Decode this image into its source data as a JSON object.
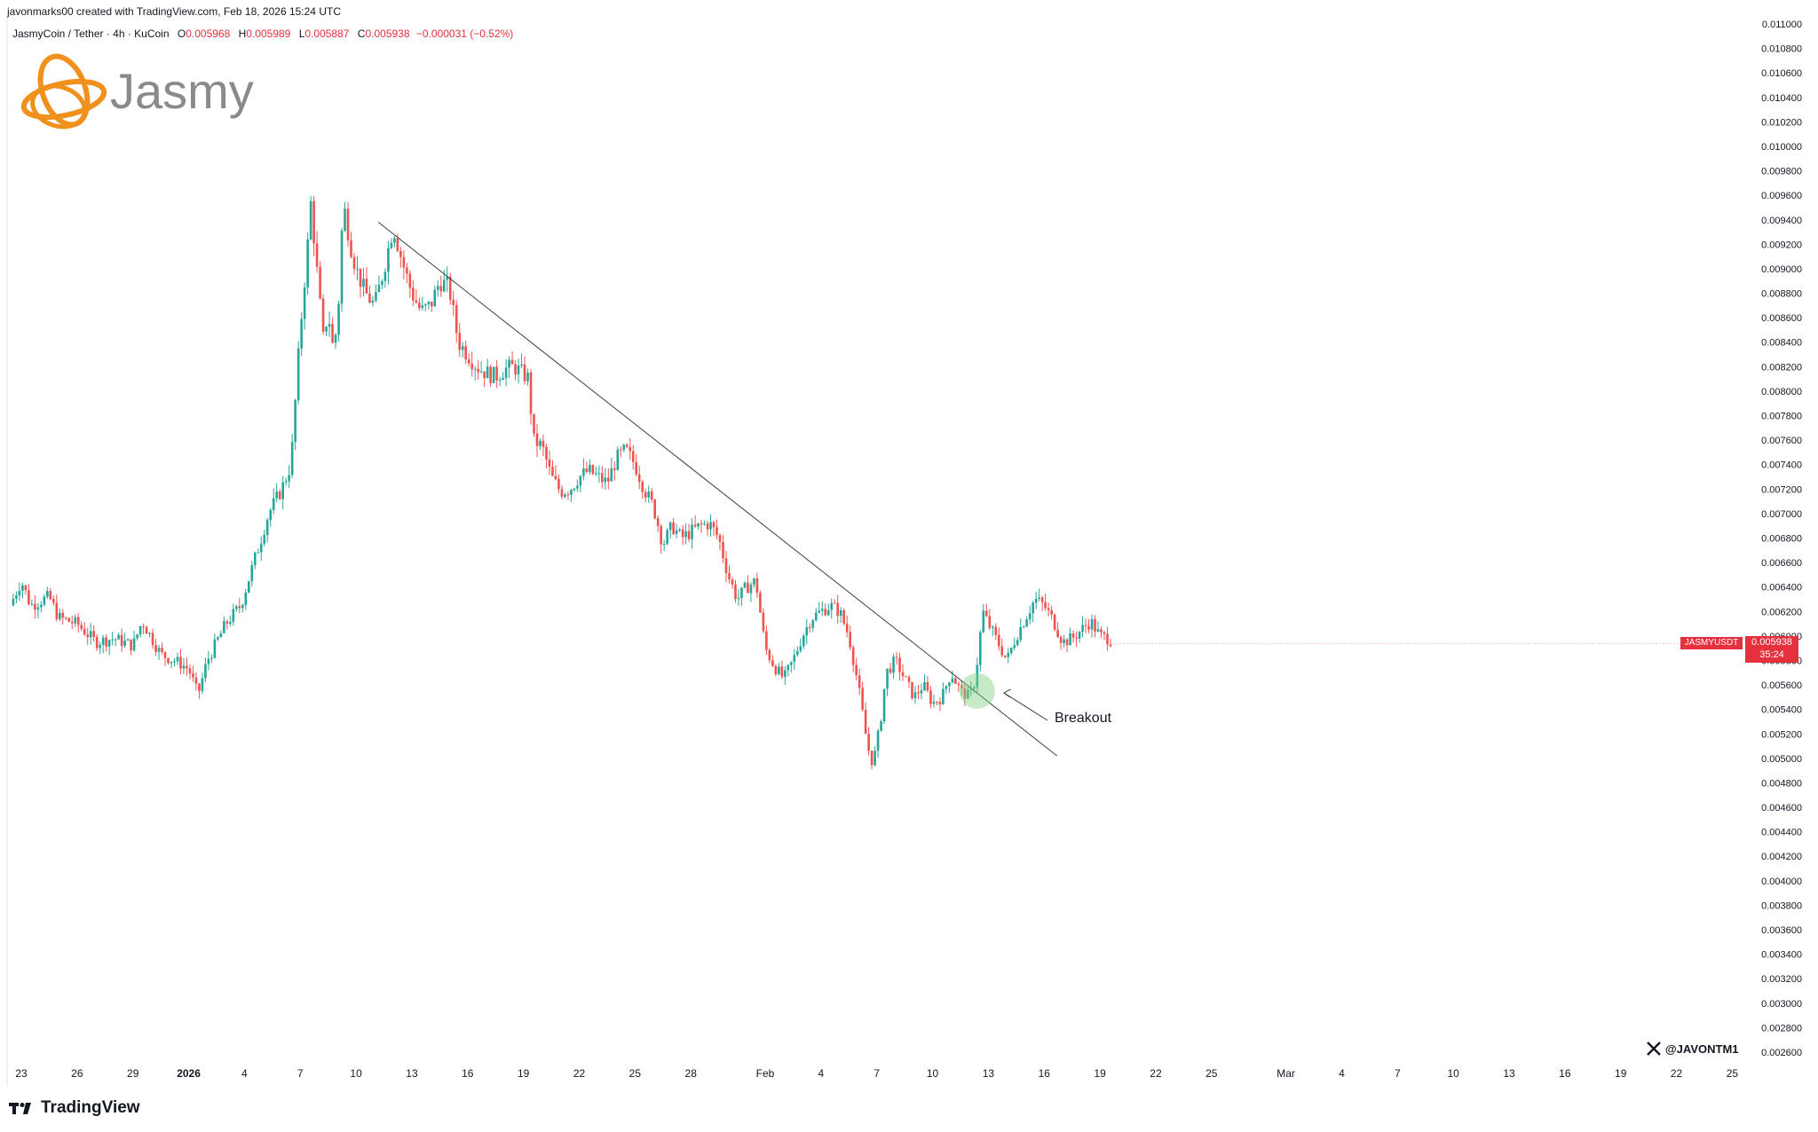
{
  "header": {
    "credit": "javonmarks00 created with TradingView.com, Feb 18, 2026 15:24 UTC"
  },
  "symbol": {
    "name": "JasmyCoin / Tether · 4h · KuCoin",
    "open_label": "O",
    "open": "0.005968",
    "high_label": "H",
    "high": "0.005989",
    "low_label": "L",
    "low": "0.005887",
    "close_label": "C",
    "close": "0.005938",
    "change": "−0.000031 (−0.52%)"
  },
  "logo": {
    "text": "Jasmy",
    "icon": "jasmy-orbit-icon",
    "color": "#f0911e"
  },
  "price_tag": {
    "symbol": "JASMYUSDT",
    "price": "0.005938",
    "countdown": "35:24",
    "color": "#e5303d"
  },
  "annotation": {
    "label": "Breakout"
  },
  "footer": {
    "brand": "TradingView",
    "brand_icon": "tradingview-logo-icon",
    "handle": "@JAVONTM1",
    "handle_icon": "x-logo-icon"
  },
  "colors": {
    "up": "#26a69a",
    "down": "#ef5350",
    "trendline": "#3d3d3d",
    "breakout_circle": "#7fd07f"
  },
  "chart_data": {
    "type": "candlestick",
    "title": "",
    "xlabel": "",
    "ylabel": "",
    "ylim": [
      0.0025,
      0.0111
    ],
    "y_ticks": [
      "0.011000",
      "0.010800",
      "0.010600",
      "0.010400",
      "0.010200",
      "0.010000",
      "0.009800",
      "0.009600",
      "0.009400",
      "0.009200",
      "0.009000",
      "0.008800",
      "0.008600",
      "0.008400",
      "0.008200",
      "0.008000",
      "0.007800",
      "0.007600",
      "0.007400",
      "0.007200",
      "0.007000",
      "0.006800",
      "0.006600",
      "0.006400",
      "0.006200",
      "0.006000",
      "0.005800",
      "0.005600",
      "0.005400",
      "0.005200",
      "0.005000",
      "0.004800",
      "0.004600",
      "0.004400",
      "0.004200",
      "0.004000",
      "0.003800",
      "0.003600",
      "0.003400",
      "0.003200",
      "0.003000",
      "0.002800",
      "0.002600"
    ],
    "x_ticks": [
      {
        "label": "23",
        "day": 0
      },
      {
        "label": "26",
        "day": 3
      },
      {
        "label": "29",
        "day": 6
      },
      {
        "label": "2026",
        "day": 9,
        "bold": true
      },
      {
        "label": "4",
        "day": 12
      },
      {
        "label": "7",
        "day": 15
      },
      {
        "label": "10",
        "day": 18
      },
      {
        "label": "13",
        "day": 21
      },
      {
        "label": "16",
        "day": 24
      },
      {
        "label": "19",
        "day": 27
      },
      {
        "label": "22",
        "day": 30
      },
      {
        "label": "25",
        "day": 33
      },
      {
        "label": "28",
        "day": 36
      },
      {
        "label": "Feb",
        "day": 40
      },
      {
        "label": "4",
        "day": 43
      },
      {
        "label": "7",
        "day": 46
      },
      {
        "label": "10",
        "day": 49
      },
      {
        "label": "13",
        "day": 52
      },
      {
        "label": "16",
        "day": 55
      },
      {
        "label": "19",
        "day": 58
      },
      {
        "label": "22",
        "day": 61
      },
      {
        "label": "25",
        "day": 64
      },
      {
        "label": "Mar",
        "day": 68
      },
      {
        "label": "4",
        "day": 71
      },
      {
        "label": "7",
        "day": 74
      },
      {
        "label": "10",
        "day": 77
      },
      {
        "label": "13",
        "day": 80
      },
      {
        "label": "16",
        "day": 83
      },
      {
        "label": "19",
        "day": 86
      },
      {
        "label": "22",
        "day": 89
      },
      {
        "label": "25",
        "day": 92
      }
    ],
    "anchors": [
      [
        -0.6,
        0.00625
      ],
      [
        0.0,
        0.00645
      ],
      [
        0.5,
        0.00625
      ],
      [
        1.5,
        0.00632
      ],
      [
        2.0,
        0.00615
      ],
      [
        3.0,
        0.0061
      ],
      [
        4.0,
        0.00595
      ],
      [
        5.0,
        0.00598
      ],
      [
        6.0,
        0.00592
      ],
      [
        6.5,
        0.00612
      ],
      [
        7.5,
        0.00585
      ],
      [
        8.5,
        0.00578
      ],
      [
        9.0,
        0.00573
      ],
      [
        9.5,
        0.00552
      ],
      [
        10.0,
        0.0058
      ],
      [
        11.0,
        0.0061
      ],
      [
        11.8,
        0.00625
      ],
      [
        12.5,
        0.0066
      ],
      [
        13.3,
        0.007
      ],
      [
        14.0,
        0.0072
      ],
      [
        14.5,
        0.0074
      ],
      [
        15.0,
        0.0085
      ],
      [
        15.4,
        0.0092
      ],
      [
        15.6,
        0.0096
      ],
      [
        15.8,
        0.0091
      ],
      [
        16.0,
        0.00885
      ],
      [
        16.2,
        0.0084
      ],
      [
        16.5,
        0.00865
      ],
      [
        16.8,
        0.0083
      ],
      [
        17.1,
        0.0088
      ],
      [
        17.3,
        0.00955
      ],
      [
        17.7,
        0.0092
      ],
      [
        18.0,
        0.009
      ],
      [
        18.5,
        0.0088
      ],
      [
        19.0,
        0.0087
      ],
      [
        19.5,
        0.009
      ],
      [
        20.0,
        0.00935
      ],
      [
        20.5,
        0.00905
      ],
      [
        21.0,
        0.0088
      ],
      [
        21.5,
        0.00865
      ],
      [
        22.0,
        0.0087
      ],
      [
        22.5,
        0.0089
      ],
      [
        23.0,
        0.00885
      ],
      [
        23.5,
        0.0084
      ],
      [
        24.0,
        0.0083
      ],
      [
        24.5,
        0.0082
      ],
      [
        25.0,
        0.00815
      ],
      [
        25.5,
        0.00812
      ],
      [
        26.0,
        0.00818
      ],
      [
        26.5,
        0.0082
      ],
      [
        27.3,
        0.0081
      ],
      [
        27.5,
        0.0076
      ],
      [
        28.0,
        0.00755
      ],
      [
        28.5,
        0.0073
      ],
      [
        29.0,
        0.00718
      ],
      [
        29.5,
        0.0072
      ],
      [
        30.0,
        0.0073
      ],
      [
        30.5,
        0.00735
      ],
      [
        31.5,
        0.00725
      ],
      [
        32.0,
        0.00745
      ],
      [
        32.5,
        0.00752
      ],
      [
        33.0,
        0.0074
      ],
      [
        33.5,
        0.0072
      ],
      [
        34.0,
        0.00705
      ],
      [
        34.5,
        0.00675
      ],
      [
        35.0,
        0.0069
      ],
      [
        35.5,
        0.0068
      ],
      [
        36.0,
        0.00685
      ],
      [
        36.5,
        0.0069
      ],
      [
        37.0,
        0.00692
      ],
      [
        37.5,
        0.0068
      ],
      [
        38.0,
        0.0065
      ],
      [
        38.5,
        0.0063
      ],
      [
        39.0,
        0.0064
      ],
      [
        39.5,
        0.00645
      ],
      [
        40.0,
        0.0059
      ],
      [
        40.5,
        0.00575
      ],
      [
        41.0,
        0.00565
      ],
      [
        41.5,
        0.0058
      ],
      [
        42.0,
        0.006
      ],
      [
        42.5,
        0.00615
      ],
      [
        43.0,
        0.0062
      ],
      [
        43.5,
        0.00625
      ],
      [
        44.0,
        0.0062
      ],
      [
        44.5,
        0.006
      ],
      [
        45.0,
        0.0056
      ],
      [
        45.5,
        0.0051
      ],
      [
        45.8,
        0.00495
      ],
      [
        46.2,
        0.0053
      ],
      [
        46.5,
        0.0057
      ],
      [
        47.0,
        0.0058
      ],
      [
        47.5,
        0.00565
      ],
      [
        48.0,
        0.0055
      ],
      [
        48.5,
        0.0056
      ],
      [
        49.0,
        0.00545
      ],
      [
        49.5,
        0.0055
      ],
      [
        50.0,
        0.0057
      ],
      [
        50.5,
        0.00555
      ],
      [
        51.0,
        0.0055
      ],
      [
        51.3,
        0.00565
      ],
      [
        51.7,
        0.0062
      ],
      [
        52.0,
        0.0061
      ],
      [
        52.5,
        0.00595
      ],
      [
        53.0,
        0.0058
      ],
      [
        53.5,
        0.006
      ],
      [
        54.0,
        0.00615
      ],
      [
        54.5,
        0.0063
      ],
      [
        55.0,
        0.00625
      ],
      [
        55.5,
        0.00612
      ],
      [
        56.0,
        0.00595
      ],
      [
        56.5,
        0.00598
      ],
      [
        57.0,
        0.00605
      ],
      [
        57.5,
        0.00612
      ],
      [
        58.0,
        0.006
      ],
      [
        58.5,
        0.00598
      ],
      [
        58.7,
        0.005938
      ]
    ],
    "trendline": [
      [
        19.2,
        0.00938
      ],
      [
        53.4,
        0.00518
      ]
    ],
    "breakout_point": [
      51.4,
      0.00555
    ]
  }
}
